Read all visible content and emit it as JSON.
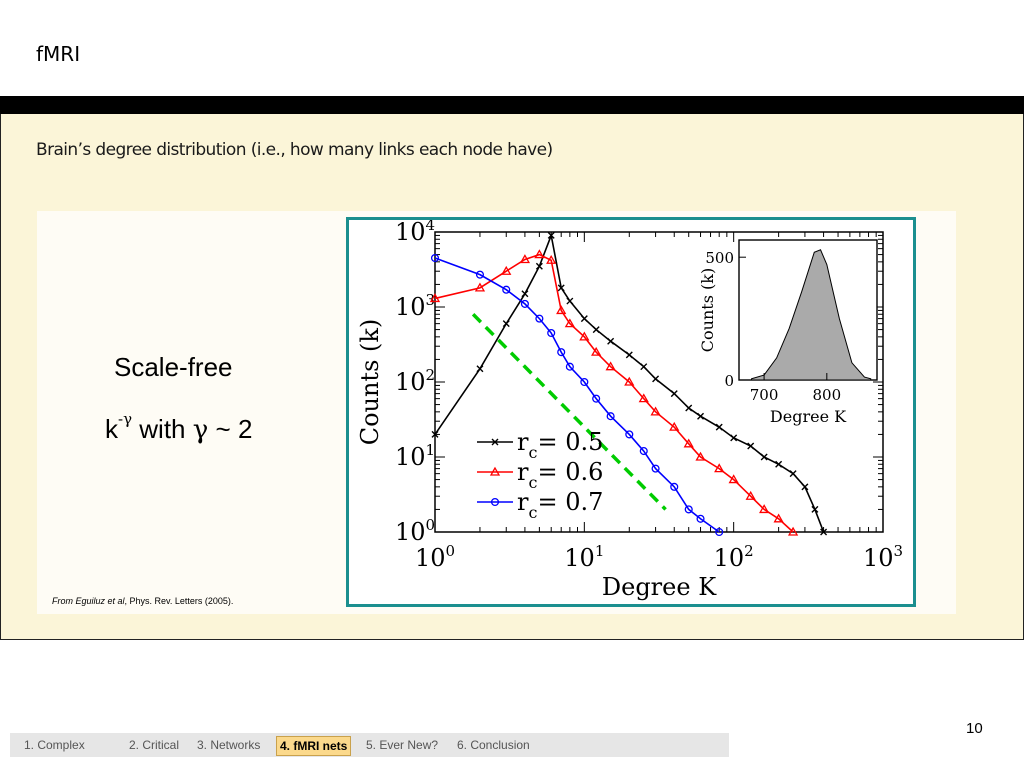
{
  "slide": {
    "title": "fMRI",
    "subtitle": "Brain’s degree distribution (i.e., how many links each node have)",
    "scale_free_label": "Scale-free",
    "formula": {
      "base": "k",
      "exponent": "-γ",
      "with_text": "with",
      "gamma": "γ",
      "approx": "~ 2"
    },
    "citation": {
      "authors": "From Eguiluz et al",
      "journal": ", Phys. Rev. Letters (2005)."
    },
    "page_number": "10"
  },
  "nav": {
    "items": [
      {
        "label": "1. Complex",
        "active": false
      },
      {
        "label": "2. Critical",
        "active": false
      },
      {
        "label": "3.  Networks",
        "active": false
      },
      {
        "label": "4. fMRI nets",
        "active": true
      },
      {
        "label": "5. Ever New?",
        "active": false
      },
      {
        "label": "6. Conclusion",
        "active": false
      }
    ]
  },
  "colors": {
    "frame": "#1b8f8f",
    "panel": "#fbf5d8",
    "active_tab": "#fbd98c",
    "series": [
      "#000000",
      "#ff0000",
      "#0000ff"
    ],
    "power_law": "#00cc00"
  },
  "chart_data": [
    {
      "type": "line",
      "xlabel": "Degree K",
      "ylabel": "Counts (k)",
      "x_scale": "log",
      "y_scale": "log",
      "xlim": [
        1,
        1000
      ],
      "ylim": [
        1,
        10000
      ],
      "x_ticks": [
        {
          "base": "10",
          "exp": "0"
        },
        {
          "base": "10",
          "exp": "1"
        },
        {
          "base": "10",
          "exp": "2"
        },
        {
          "base": "10",
          "exp": "3"
        }
      ],
      "y_ticks": [
        {
          "base": "10",
          "exp": "0"
        },
        {
          "base": "10",
          "exp": "1"
        },
        {
          "base": "10",
          "exp": "2"
        },
        {
          "base": "10",
          "exp": "3"
        },
        {
          "base": "10",
          "exp": "4"
        }
      ],
      "legend_position": "bottom-center",
      "series": [
        {
          "name": "rc= 0.5",
          "label_main": "r",
          "label_sub": "c",
          "label_rest": "= 0.5",
          "color": "#000000",
          "marker": "x",
          "x": [
            1,
            2,
            3,
            4,
            5,
            6,
            7,
            8,
            10,
            12,
            15,
            20,
            25,
            30,
            40,
            50,
            60,
            80,
            100,
            130,
            160,
            200,
            250,
            300,
            350,
            400
          ],
          "y": [
            20,
            150,
            600,
            1500,
            3500,
            9000,
            1800,
            1200,
            700,
            500,
            350,
            230,
            160,
            110,
            70,
            45,
            35,
            25,
            18,
            14,
            10,
            8,
            6,
            4,
            2,
            1
          ]
        },
        {
          "name": "rc= 0.6",
          "label_main": "r",
          "label_sub": "c",
          "label_rest": "= 0.6",
          "color": "#ff0000",
          "marker": "triangle",
          "x": [
            1,
            2,
            3,
            4,
            5,
            6,
            7,
            8,
            10,
            12,
            15,
            20,
            25,
            30,
            40,
            50,
            60,
            80,
            100,
            130,
            160,
            200,
            250
          ],
          "y": [
            1300,
            1800,
            3000,
            4300,
            5000,
            4200,
            900,
            600,
            400,
            250,
            160,
            100,
            60,
            40,
            25,
            15,
            10,
            7,
            5,
            3,
            2,
            1.5,
            1
          ]
        },
        {
          "name": "rc= 0.7",
          "label_main": "r",
          "label_sub": "c",
          "label_rest": "= 0.7",
          "color": "#0000ff",
          "marker": "circle",
          "x": [
            1,
            2,
            3,
            4,
            5,
            6,
            7,
            8,
            10,
            12,
            15,
            20,
            25,
            30,
            40,
            50,
            60,
            80
          ],
          "y": [
            4500,
            2700,
            1700,
            1100,
            700,
            450,
            250,
            160,
            100,
            60,
            35,
            20,
            12,
            7,
            4,
            2,
            1.5,
            1
          ]
        }
      ],
      "power_law_guide": {
        "style": "dashed",
        "color": "#00cc00",
        "x": [
          1.8,
          35
        ],
        "y": [
          800,
          2
        ]
      }
    },
    {
      "type": "area",
      "inset": true,
      "xlabel": "Degree K",
      "ylabel": "Counts (k)",
      "xlim": [
        660,
        880
      ],
      "ylim": [
        0,
        570
      ],
      "x_ticks": [
        "700",
        "800"
      ],
      "y_ticks": [
        "0",
        "500"
      ],
      "x": [
        680,
        700,
        720,
        740,
        760,
        770,
        780,
        790,
        800,
        810,
        820,
        840,
        860,
        870
      ],
      "y": [
        5,
        20,
        90,
        210,
        360,
        440,
        520,
        530,
        470,
        360,
        250,
        70,
        12,
        5
      ]
    }
  ]
}
